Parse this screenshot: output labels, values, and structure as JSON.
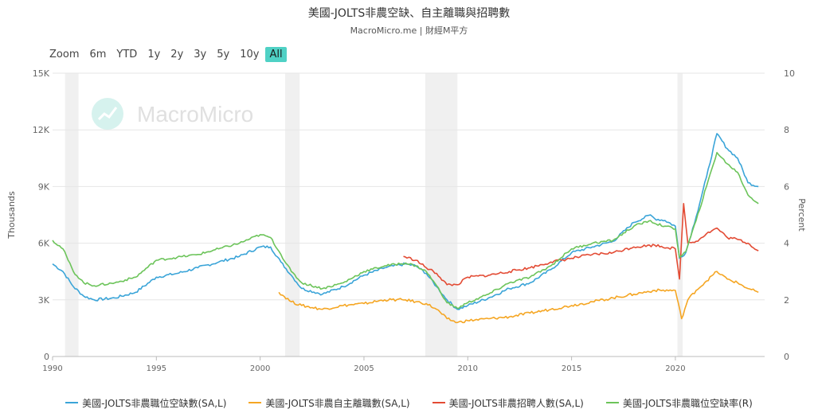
{
  "header": {
    "title": "美國-JOLTS非農空缺、自主離職與招聘數",
    "subtitle": "MacroMicro.me | 財經M平方"
  },
  "zoom": {
    "label": "Zoom",
    "buttons": [
      "6m",
      "YTD",
      "1y",
      "2y",
      "3y",
      "5y",
      "10y",
      "All"
    ],
    "active": "All"
  },
  "watermark": {
    "text": "MacroMicro",
    "icon": "chart-trend-icon"
  },
  "chart_data": {
    "type": "line",
    "xlim": [
      1990,
      2024.3
    ],
    "x_ticks": [
      "1990",
      "1995",
      "2000",
      "2005",
      "2010",
      "2015",
      "2020"
    ],
    "y_left": {
      "label": "Thousands",
      "range": [
        0,
        15000
      ],
      "ticks": [
        "0",
        "3K",
        "6K",
        "9K",
        "12K",
        "15K"
      ]
    },
    "y_right": {
      "label": "Percent",
      "range": [
        0,
        10
      ],
      "ticks": [
        "0",
        "2",
        "4",
        "6",
        "8",
        "10"
      ]
    },
    "recessions": [
      [
        1990.6,
        1991.25
      ],
      [
        2001.2,
        2001.9
      ],
      [
        2007.95,
        2009.5
      ],
      [
        2020.1,
        2020.35
      ]
    ],
    "grid": true,
    "legend_position": "bottom",
    "series": [
      {
        "name": "美國-JOLTS非農職位空缺數(SA,L)",
        "axis": "left",
        "color": "#3aa4d8",
        "points": [
          [
            1990,
            4900
          ],
          [
            1990.5,
            4500
          ],
          [
            1991,
            3700
          ],
          [
            1991.5,
            3200
          ],
          [
            1992,
            3000
          ],
          [
            1993,
            3100
          ],
          [
            1994,
            3400
          ],
          [
            1995,
            4200
          ],
          [
            1996,
            4400
          ],
          [
            1997,
            4700
          ],
          [
            1998,
            5000
          ],
          [
            1999,
            5300
          ],
          [
            2000,
            5800
          ],
          [
            2000.5,
            5800
          ],
          [
            2001,
            5000
          ],
          [
            2001.5,
            4300
          ],
          [
            2002,
            3600
          ],
          [
            2003,
            3300
          ],
          [
            2004,
            3700
          ],
          [
            2005,
            4300
          ],
          [
            2006,
            4700
          ],
          [
            2007,
            4900
          ],
          [
            2007.5,
            4800
          ],
          [
            2008,
            4400
          ],
          [
            2008.5,
            3700
          ],
          [
            2009,
            3000
          ],
          [
            2009.5,
            2500
          ],
          [
            2010,
            2700
          ],
          [
            2011,
            3100
          ],
          [
            2012,
            3600
          ],
          [
            2013,
            3900
          ],
          [
            2014,
            4600
          ],
          [
            2015,
            5500
          ],
          [
            2016,
            5800
          ],
          [
            2017,
            6100
          ],
          [
            2018,
            7100
          ],
          [
            2018.8,
            7500
          ],
          [
            2019,
            7300
          ],
          [
            2019.5,
            7200
          ],
          [
            2020,
            6900
          ],
          [
            2020.2,
            5200
          ],
          [
            2020.5,
            5500
          ],
          [
            2021,
            7400
          ],
          [
            2021.5,
            9500
          ],
          [
            2022,
            11800
          ],
          [
            2022.5,
            11000
          ],
          [
            2023,
            10500
          ],
          [
            2023.5,
            9200
          ],
          [
            2024,
            9000
          ]
        ]
      },
      {
        "name": "美國-JOLTS非農自主離職數(SA,L)",
        "axis": "left",
        "color": "#f5a623",
        "points": [
          [
            2000.9,
            3400
          ],
          [
            2001.5,
            2900
          ],
          [
            2002,
            2700
          ],
          [
            2003,
            2500
          ],
          [
            2004,
            2700
          ],
          [
            2005,
            2800
          ],
          [
            2006,
            3000
          ],
          [
            2007,
            3000
          ],
          [
            2007.5,
            2900
          ],
          [
            2008,
            2800
          ],
          [
            2008.5,
            2500
          ],
          [
            2009,
            2000
          ],
          [
            2009.5,
            1800
          ],
          [
            2010,
            1900
          ],
          [
            2011,
            2000
          ],
          [
            2012,
            2100
          ],
          [
            2013,
            2300
          ],
          [
            2014,
            2500
          ],
          [
            2015,
            2700
          ],
          [
            2016,
            2900
          ],
          [
            2017,
            3100
          ],
          [
            2018,
            3300
          ],
          [
            2019,
            3500
          ],
          [
            2020,
            3500
          ],
          [
            2020.3,
            2000
          ],
          [
            2020.6,
            3000
          ],
          [
            2021,
            3500
          ],
          [
            2021.5,
            4000
          ],
          [
            2022,
            4500
          ],
          [
            2022.5,
            4100
          ],
          [
            2023,
            3900
          ],
          [
            2023.5,
            3600
          ],
          [
            2024,
            3400
          ]
        ]
      },
      {
        "name": "美國-JOLTS非農招聘人數(SA,L)",
        "axis": "left",
        "color": "#e34b34",
        "points": [
          [
            2006.9,
            5300
          ],
          [
            2007.5,
            5100
          ],
          [
            2008,
            4700
          ],
          [
            2008.5,
            4400
          ],
          [
            2009,
            3800
          ],
          [
            2009.5,
            3800
          ],
          [
            2010,
            4200
          ],
          [
            2011,
            4300
          ],
          [
            2012,
            4500
          ],
          [
            2013,
            4700
          ],
          [
            2014,
            5000
          ],
          [
            2015,
            5200
          ],
          [
            2016,
            5400
          ],
          [
            2017,
            5500
          ],
          [
            2018,
            5800
          ],
          [
            2019,
            5900
          ],
          [
            2020,
            5700
          ],
          [
            2020.2,
            4100
          ],
          [
            2020.4,
            8100
          ],
          [
            2020.6,
            6000
          ],
          [
            2021,
            6100
          ],
          [
            2021.5,
            6500
          ],
          [
            2022,
            6800
          ],
          [
            2022.5,
            6300
          ],
          [
            2023,
            6200
          ],
          [
            2023.5,
            6000
          ],
          [
            2024,
            5600
          ]
        ]
      },
      {
        "name": "美國-JOLTS非農職位空缺率(R)",
        "axis": "right",
        "color": "#6cc45a",
        "points": [
          [
            1990,
            4.1
          ],
          [
            1990.5,
            3.8
          ],
          [
            1991,
            3.0
          ],
          [
            1991.5,
            2.6
          ],
          [
            1992,
            2.5
          ],
          [
            1993,
            2.6
          ],
          [
            1994,
            2.8
          ],
          [
            1995,
            3.4
          ],
          [
            1996,
            3.5
          ],
          [
            1997,
            3.6
          ],
          [
            1998,
            3.8
          ],
          [
            1999,
            4.0
          ],
          [
            2000,
            4.3
          ],
          [
            2000.5,
            4.2
          ],
          [
            2001,
            3.6
          ],
          [
            2001.5,
            3.0
          ],
          [
            2002,
            2.6
          ],
          [
            2003,
            2.4
          ],
          [
            2004,
            2.6
          ],
          [
            2005,
            3.0
          ],
          [
            2006,
            3.2
          ],
          [
            2007,
            3.3
          ],
          [
            2007.5,
            3.2
          ],
          [
            2008,
            3.0
          ],
          [
            2008.5,
            2.5
          ],
          [
            2009,
            1.9
          ],
          [
            2009.5,
            1.7
          ],
          [
            2010,
            1.9
          ],
          [
            2011,
            2.2
          ],
          [
            2012,
            2.6
          ],
          [
            2013,
            2.8
          ],
          [
            2014,
            3.2
          ],
          [
            2015,
            3.8
          ],
          [
            2016,
            4.0
          ],
          [
            2017,
            4.1
          ],
          [
            2018,
            4.6
          ],
          [
            2018.8,
            4.8
          ],
          [
            2019,
            4.7
          ],
          [
            2019.5,
            4.6
          ],
          [
            2020,
            4.5
          ],
          [
            2020.2,
            3.5
          ],
          [
            2020.5,
            3.7
          ],
          [
            2021,
            4.8
          ],
          [
            2021.5,
            6.0
          ],
          [
            2022,
            7.2
          ],
          [
            2022.5,
            6.8
          ],
          [
            2023,
            6.5
          ],
          [
            2023.5,
            5.7
          ],
          [
            2024,
            5.4
          ]
        ]
      }
    ]
  }
}
